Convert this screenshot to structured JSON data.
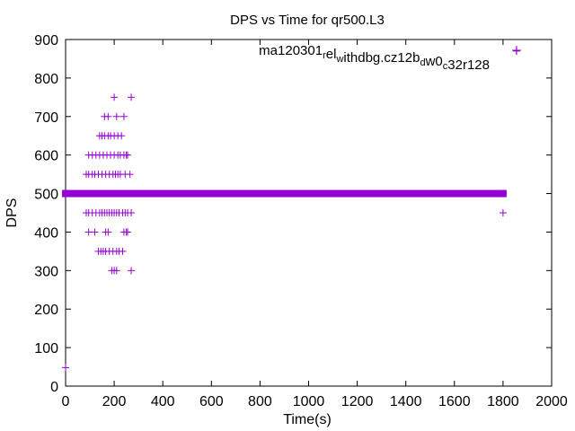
{
  "chart_data": {
    "type": "scatter",
    "title": "DPS vs Time for qr500.L3",
    "xlabel": "Time(s)",
    "ylabel": "DPS",
    "xlim": [
      0,
      2000
    ],
    "ylim": [
      0,
      900
    ],
    "xticks": [
      0,
      200,
      400,
      600,
      800,
      1000,
      1200,
      1400,
      1600,
      1800,
      2000
    ],
    "yticks": [
      0,
      100,
      200,
      300,
      400,
      500,
      600,
      700,
      800,
      900
    ],
    "grid": false,
    "legend": {
      "position": "top-right",
      "parts": [
        {
          "text": "ma120301",
          "sub": false
        },
        {
          "text": "r",
          "sub": true
        },
        {
          "text": "el",
          "sub": false
        },
        {
          "text": "w",
          "sub": true
        },
        {
          "text": "ithdbg.cz12b",
          "sub": false
        },
        {
          "text": "d",
          "sub": true
        },
        {
          "text": "w0",
          "sub": false
        },
        {
          "text": "c",
          "sub": true
        },
        {
          "text": "32r128",
          "sub": false
        }
      ]
    },
    "series": [
      {
        "name": "ma120301_rel_withdbg.cz12b_dw0_c32r128",
        "color": "#9400d3",
        "marker": "+",
        "dense_band": {
          "y": 500,
          "x_from": 0,
          "x_to": 1800
        },
        "points": [
          [
            0,
            48
          ],
          [
            85,
            550
          ],
          [
            95,
            550
          ],
          [
            110,
            550
          ],
          [
            120,
            550
          ],
          [
            135,
            550
          ],
          [
            150,
            550
          ],
          [
            165,
            550
          ],
          [
            180,
            550
          ],
          [
            195,
            550
          ],
          [
            205,
            550
          ],
          [
            215,
            550
          ],
          [
            225,
            550
          ],
          [
            245,
            550
          ],
          [
            265,
            550
          ],
          [
            85,
            450
          ],
          [
            95,
            450
          ],
          [
            110,
            450
          ],
          [
            125,
            450
          ],
          [
            140,
            450
          ],
          [
            150,
            450
          ],
          [
            160,
            450
          ],
          [
            170,
            450
          ],
          [
            180,
            450
          ],
          [
            190,
            450
          ],
          [
            200,
            450
          ],
          [
            210,
            450
          ],
          [
            220,
            450
          ],
          [
            235,
            450
          ],
          [
            245,
            450
          ],
          [
            255,
            450
          ],
          [
            270,
            450
          ],
          [
            95,
            600
          ],
          [
            110,
            600
          ],
          [
            125,
            600
          ],
          [
            140,
            600
          ],
          [
            155,
            600
          ],
          [
            170,
            600
          ],
          [
            185,
            600
          ],
          [
            200,
            600
          ],
          [
            215,
            600
          ],
          [
            225,
            600
          ],
          [
            240,
            600
          ],
          [
            250,
            600
          ],
          [
            255,
            600
          ],
          [
            95,
            400
          ],
          [
            120,
            400
          ],
          [
            165,
            400
          ],
          [
            175,
            400
          ],
          [
            240,
            400
          ],
          [
            250,
            400
          ],
          [
            255,
            400
          ],
          [
            140,
            650
          ],
          [
            150,
            650
          ],
          [
            160,
            650
          ],
          [
            175,
            650
          ],
          [
            185,
            650
          ],
          [
            200,
            650
          ],
          [
            215,
            650
          ],
          [
            230,
            650
          ],
          [
            135,
            350
          ],
          [
            145,
            350
          ],
          [
            155,
            350
          ],
          [
            165,
            350
          ],
          [
            180,
            350
          ],
          [
            195,
            350
          ],
          [
            210,
            350
          ],
          [
            220,
            350
          ],
          [
            235,
            350
          ],
          [
            160,
            700
          ],
          [
            175,
            700
          ],
          [
            210,
            700
          ],
          [
            240,
            700
          ],
          [
            190,
            300
          ],
          [
            200,
            300
          ],
          [
            210,
            300
          ],
          [
            270,
            300
          ],
          [
            200,
            750
          ],
          [
            270,
            750
          ],
          [
            1800,
            450
          ],
          [
            1855,
            870
          ]
        ]
      }
    ]
  }
}
